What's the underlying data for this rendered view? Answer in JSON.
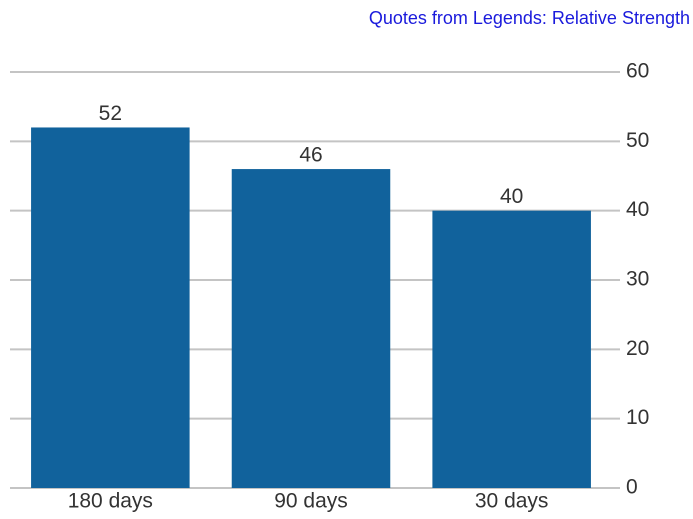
{
  "chart_data": {
    "type": "bar",
    "title": "Quotes from Legends: Relative Strength",
    "categories": [
      "180 days",
      "90 days",
      "30 days"
    ],
    "values": [
      52,
      46,
      40
    ],
    "color": "#11629c",
    "ylim": [
      0,
      60
    ],
    "yticks": [
      0,
      10,
      20,
      30,
      40,
      50,
      60
    ],
    "grid": true,
    "y_axis_side": "right"
  }
}
